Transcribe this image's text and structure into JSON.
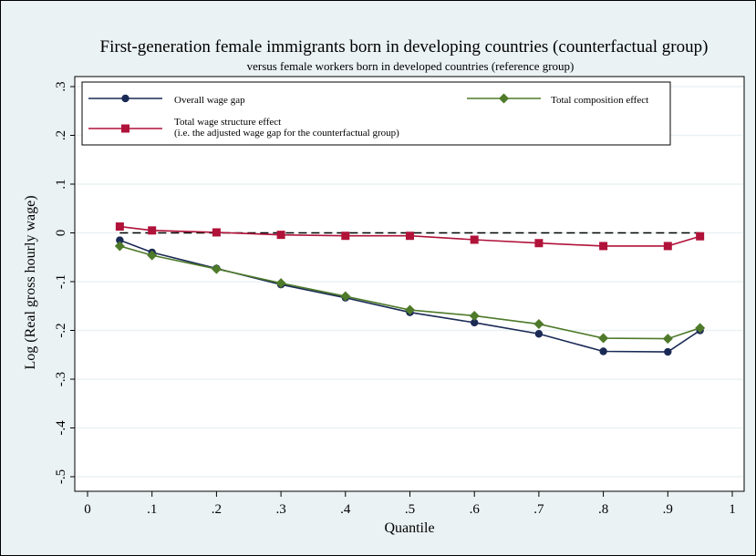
{
  "chart_data": {
    "type": "line",
    "title": "First-generation female immigrants born in developing countries (counterfactual group)",
    "subtitle": "versus female workers born in developed countries (reference group)",
    "xlabel": "Quantile",
    "ylabel": "Log (Real gross hourly wage)",
    "xlim": [
      0,
      1
    ],
    "ylim": [
      -0.5,
      0.3
    ],
    "x_ticks": [
      0,
      0.1,
      0.2,
      0.3,
      0.4,
      0.5,
      0.6,
      0.7,
      0.8,
      0.9,
      1
    ],
    "x_tick_labels": [
      "0",
      ".1",
      ".2",
      ".3",
      ".4",
      ".5",
      ".6",
      ".7",
      ".8",
      ".9",
      "1"
    ],
    "y_ticks": [
      0.3,
      0.2,
      0.1,
      0,
      -0.1,
      -0.2,
      -0.3,
      -0.4,
      -0.5
    ],
    "y_tick_labels": [
      ".3",
      ".2",
      ".1",
      "0",
      "-.1",
      "-.2",
      "-.3",
      "-.4",
      "-.5"
    ],
    "grid": "horizontal",
    "legend_placement": "top",
    "x": [
      0.05,
      0.1,
      0.2,
      0.3,
      0.4,
      0.5,
      0.6,
      0.7,
      0.8,
      0.9,
      0.95
    ],
    "series": [
      {
        "name": "Overall wage gap",
        "color": "#1a2a55",
        "marker": "circle",
        "values": [
          -0.015,
          -0.04,
          -0.073,
          -0.106,
          -0.133,
          -0.163,
          -0.184,
          -0.207,
          -0.243,
          -0.244,
          -0.2
        ]
      },
      {
        "name": "Total composition effect",
        "color": "#4e7a2a",
        "marker": "diamond",
        "values": [
          -0.027,
          -0.046,
          -0.074,
          -0.103,
          -0.13,
          -0.158,
          -0.17,
          -0.187,
          -0.216,
          -0.217,
          -0.195
        ]
      },
      {
        "name": "Total wage structure effect\n(i.e. the adjusted wage gap for the counterfactual group)",
        "color": "#b0123a",
        "marker": "square",
        "values": [
          0.013,
          0.005,
          0.001,
          -0.004,
          -0.006,
          -0.006,
          -0.014,
          -0.021,
          -0.027,
          -0.027,
          -0.007
        ]
      }
    ],
    "reference_line": {
      "y": 0,
      "style": "dashed"
    }
  }
}
